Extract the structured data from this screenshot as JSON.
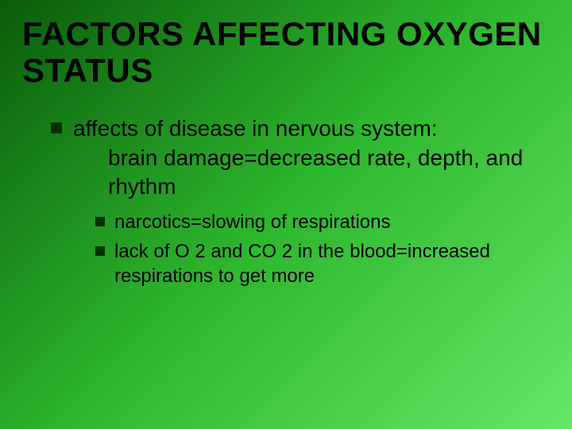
{
  "slide": {
    "title": "FACTORS AFFECTING OXYGEN STATUS",
    "bullets": {
      "outer": {
        "line1": "affects of disease in nervous system:",
        "line2": "brain damage=decreased rate, depth, and rhythm"
      },
      "inner": [
        "narcotics=slowing of respirations",
        "lack of  O 2 and CO 2 in the blood=increased respirations to get more"
      ]
    }
  },
  "style": {
    "background_gradient": [
      "#0a5c0a",
      "#2eb82e",
      "#66e666"
    ],
    "title_color": "#000000",
    "title_fontsize_pt": 32,
    "title_fontweight": 900,
    "body_color": "#000000",
    "outer_bullet_fontsize_pt": 21,
    "inner_bullet_fontsize_pt": 18,
    "bullet_marker_color": "#003300",
    "bullet_marker_shape": "square",
    "font_family": "Arial"
  }
}
